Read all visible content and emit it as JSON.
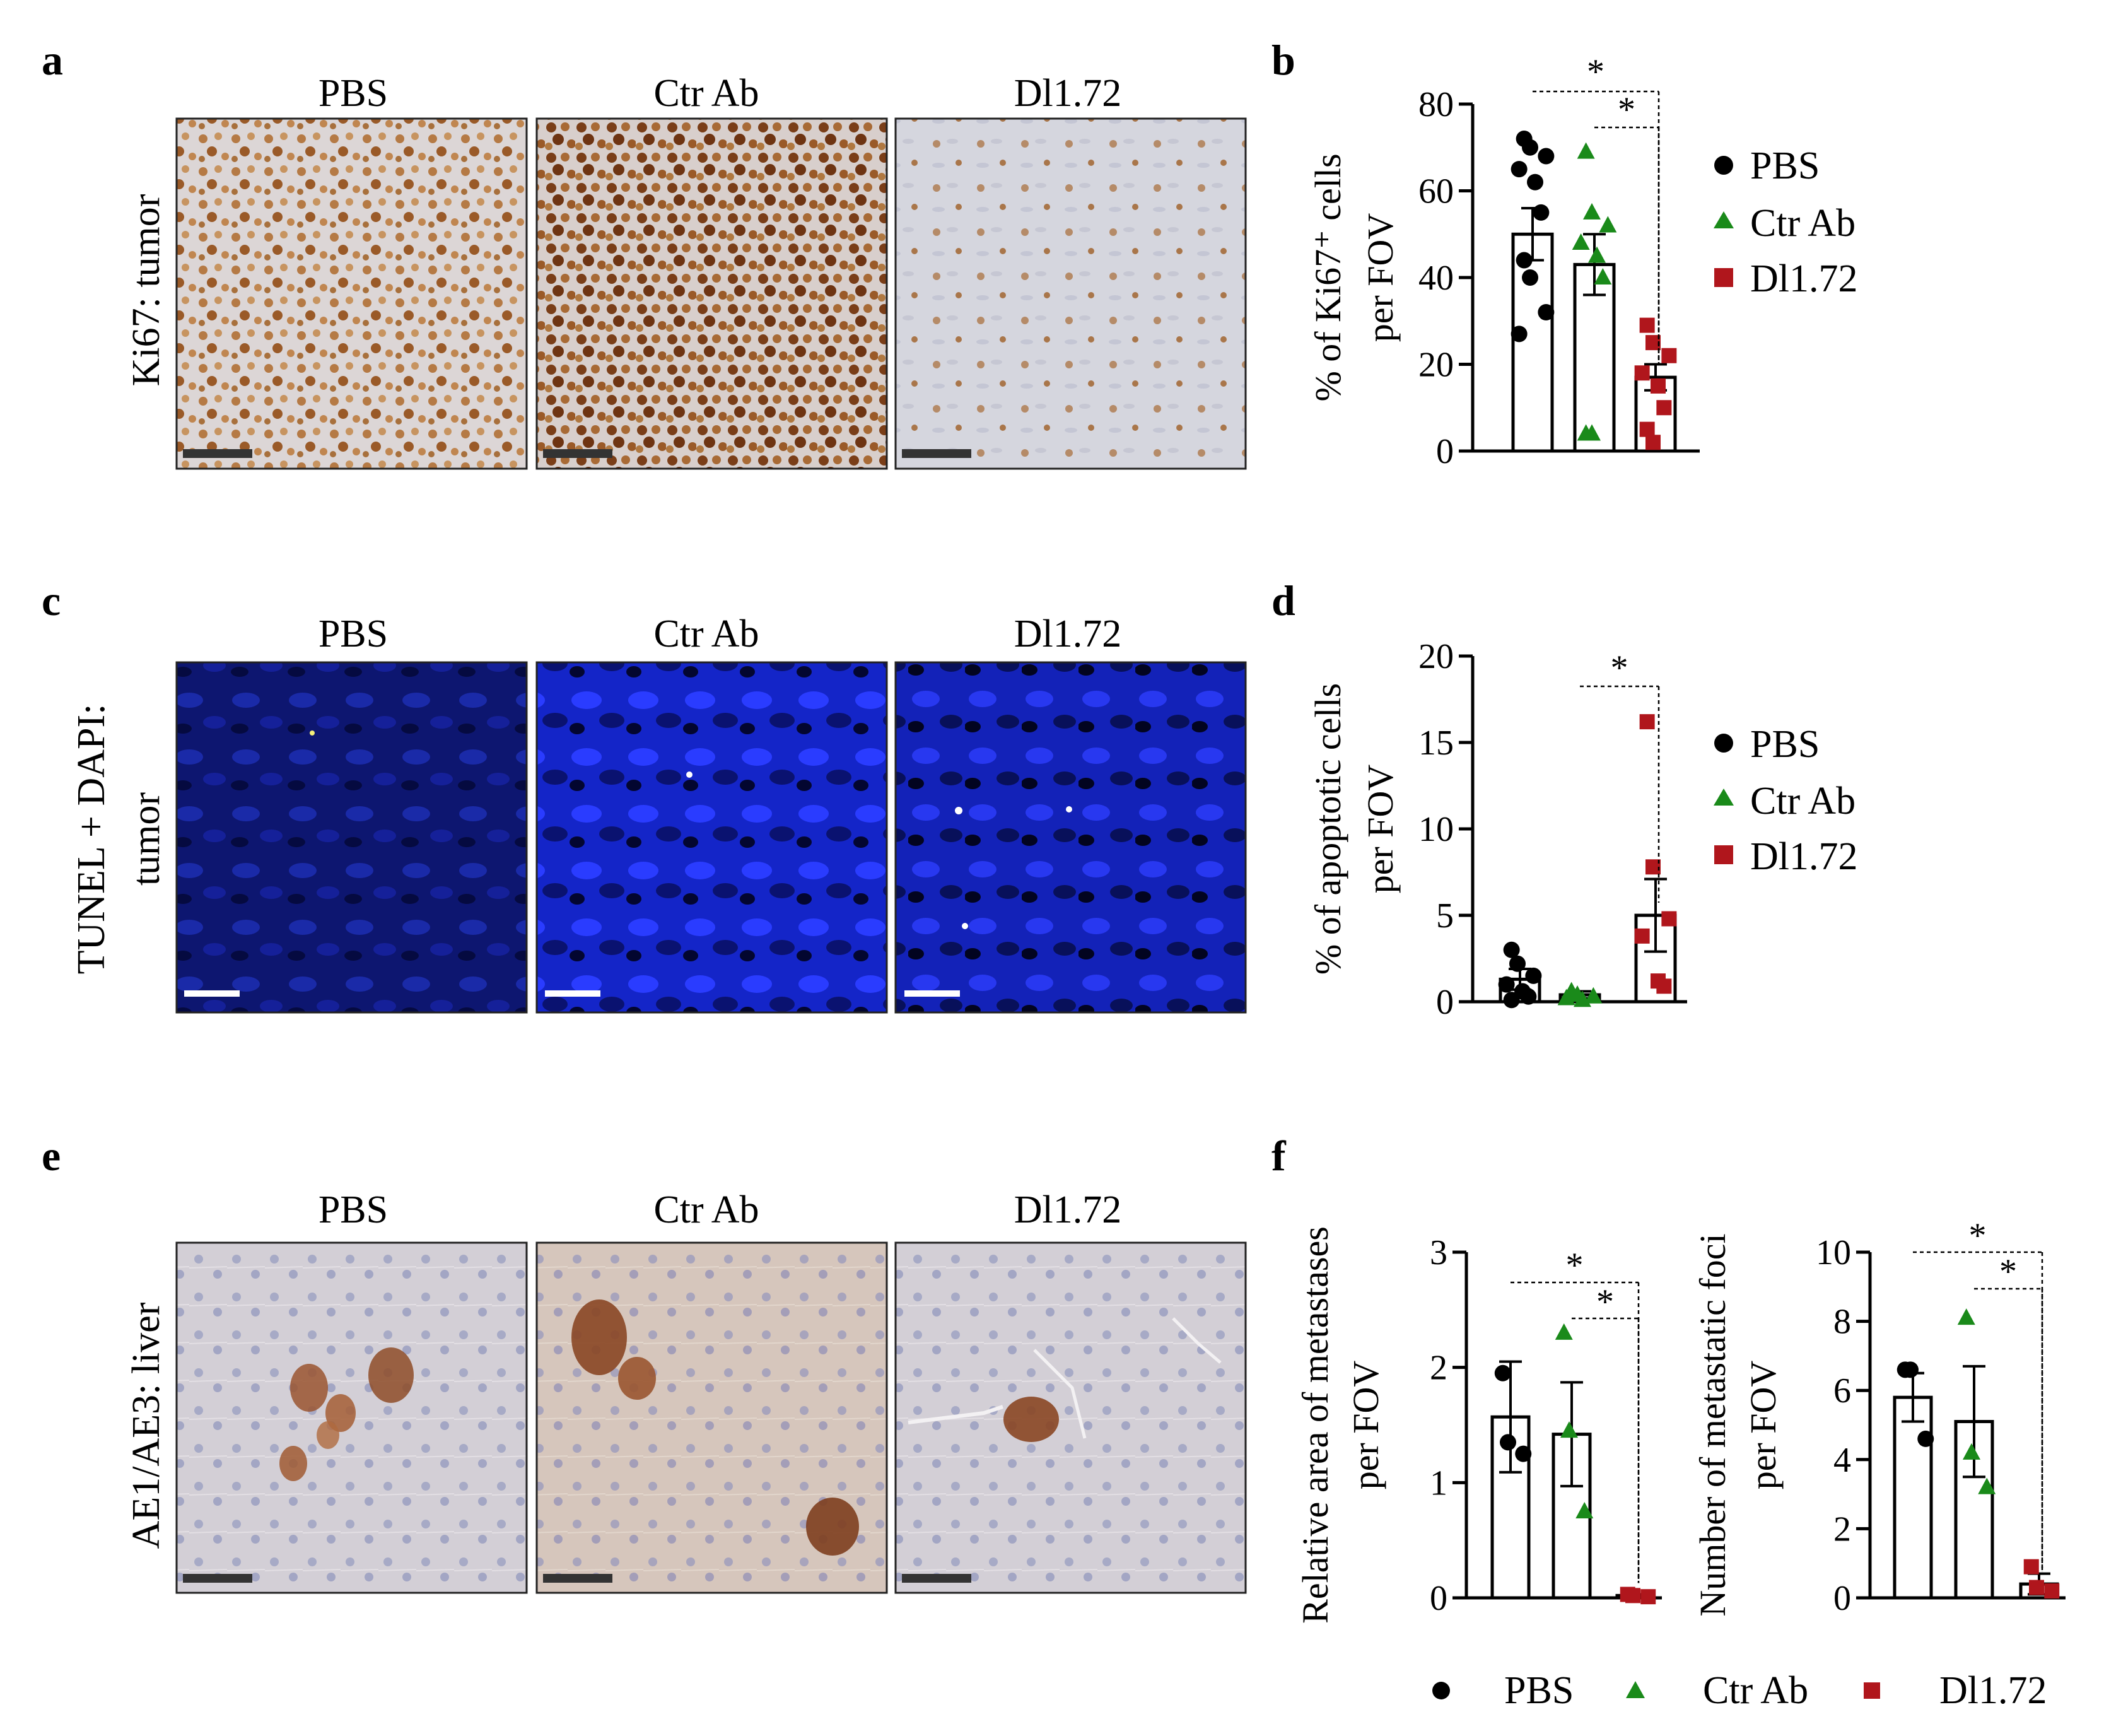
{
  "panels": {
    "a": {
      "letter": "a",
      "row_label": "Ki67: tumor",
      "columns": [
        "PBS",
        "Ctr Ab",
        "Dl1.72"
      ]
    },
    "b": {
      "letter": "b"
    },
    "c": {
      "letter": "c",
      "row_label_line1": "TUNEL + DAPI:",
      "row_label_line2": "tumor",
      "columns": [
        "PBS",
        "Ctr Ab",
        "Dl1.72"
      ]
    },
    "d": {
      "letter": "d"
    },
    "e": {
      "letter": "e",
      "row_label": "AE1/AE3: liver",
      "columns": [
        "PBS",
        "Ctr Ab",
        "Dl1.72"
      ]
    },
    "f": {
      "letter": "f"
    }
  },
  "colors": {
    "pbs": "#000000",
    "ctr_ab": "#1a8a1a",
    "dl172": "#b0161c",
    "ki67_bg": "#d9d4d6",
    "ki67_stain": "#8a4a1e",
    "tunel_bg": "#0f1f8c",
    "tunel_bright": "#2a3cff",
    "ae_bg": "#cfcbd3",
    "ae_stain": "#9a5530"
  },
  "legend": {
    "pbs": "PBS",
    "ctr_ab": "Ctr Ab",
    "dl172": "Dl1.72"
  },
  "chart_data": [
    {
      "id": "b",
      "type": "bar",
      "ylabel_line1": "% of Ki67⁺ cells",
      "ylabel_line2": "per FOV",
      "ylim": [
        0,
        80
      ],
      "yticks": [
        0,
        20,
        40,
        60,
        80
      ],
      "categories": [
        "PBS",
        "Ctr Ab",
        "Dl1.72"
      ],
      "means": [
        50,
        43,
        17
      ],
      "sem": [
        6,
        7,
        3
      ],
      "points": [
        [
          72,
          70,
          68,
          65,
          62,
          55,
          44,
          40,
          32,
          27
        ],
        [
          69,
          55,
          52,
          48,
          45,
          40,
          4,
          4
        ],
        [
          29,
          25,
          22,
          18,
          15,
          10,
          5,
          2
        ]
      ],
      "significance": [
        "*",
        "*"
      ],
      "grid": false
    },
    {
      "id": "d",
      "type": "bar",
      "ylabel_line1": "% of apoptotic cells",
      "ylabel_line2": "per FOV",
      "ylim": [
        0,
        20
      ],
      "yticks": [
        0,
        5,
        10,
        15,
        20
      ],
      "categories": [
        "PBS",
        "Ctr Ab",
        "Dl1.72"
      ],
      "means": [
        1.3,
        0.4,
        5.0
      ],
      "sem": [
        0.6,
        0.2,
        2.1
      ],
      "points": [
        [
          3.0,
          2.2,
          1.5,
          1.0,
          0.6,
          0.3,
          0.1
        ],
        [
          0.6,
          0.4,
          0.3,
          0.2,
          0.1
        ],
        [
          16.2,
          7.8,
          4.8,
          3.8,
          1.2,
          0.9
        ]
      ],
      "significance": [
        "*"
      ],
      "grid": false
    },
    {
      "id": "f1",
      "type": "bar",
      "ylabel_line1": "Relative area of metastases",
      "ylabel_line2": "per FOV",
      "ylim": [
        0,
        3
      ],
      "yticks": [
        0,
        1,
        2,
        3
      ],
      "categories": [
        "PBS",
        "Ctr Ab",
        "Dl1.72"
      ],
      "means": [
        1.57,
        1.42,
        0.02
      ],
      "sem": [
        0.48,
        0.45,
        0.01
      ],
      "points": [
        [
          1.95,
          1.35,
          1.25
        ],
        [
          2.3,
          1.45,
          0.75
        ],
        [
          0.03,
          0.02,
          0.01
        ]
      ],
      "significance": [
        "*",
        "*"
      ],
      "grid": false
    },
    {
      "id": "f2",
      "type": "bar",
      "ylabel_line1": "Number of metastatic foci",
      "ylabel_line2": "per FOV",
      "ylim": [
        0,
        10
      ],
      "yticks": [
        0,
        2,
        4,
        6,
        8,
        10
      ],
      "categories": [
        "PBS",
        "Ctr Ab",
        "Dl1.72"
      ],
      "means": [
        5.8,
        5.1,
        0.4
      ],
      "sem": [
        0.7,
        1.6,
        0.3
      ],
      "points": [
        [
          6.6,
          6.6,
          4.6
        ],
        [
          8.1,
          4.2,
          3.2
        ],
        [
          0.9,
          0.3,
          0.2
        ]
      ],
      "significance": [
        "*",
        "*"
      ],
      "grid": false
    }
  ]
}
